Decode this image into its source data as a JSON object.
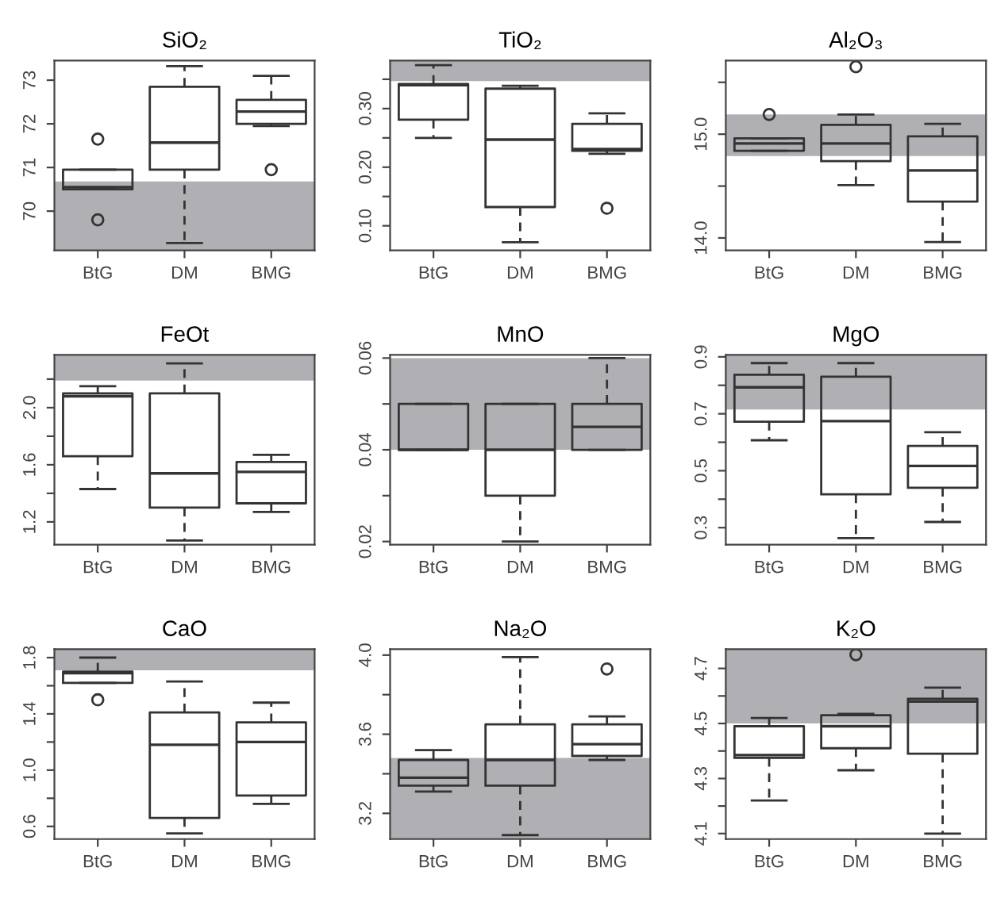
{
  "chart_data": [
    {
      "type": "box",
      "title": "SiO₂",
      "categories": [
        "BtG",
        "DM",
        "BMG"
      ],
      "ylim": [
        69.1,
        73.45
      ],
      "yticks": [
        70,
        71,
        72,
        73
      ],
      "bands": [
        {
          "axis": "y",
          "from": 69.1,
          "to": 70.68,
          "color": "#b0b0b4"
        }
      ],
      "boxes": [
        {
          "low": 70.5,
          "q1": 70.5,
          "median": 70.55,
          "q3": 70.95,
          "high": 70.95,
          "outliers": [
            71.65,
            69.8
          ]
        },
        {
          "low": 69.27,
          "q1": 70.95,
          "median": 71.57,
          "q3": 72.85,
          "high": 73.32
        },
        {
          "low": 71.95,
          "q1": 72.0,
          "median": 72.28,
          "q3": 72.55,
          "high": 73.1,
          "outliers": [
            70.95
          ]
        }
      ]
    },
    {
      "type": "box",
      "title": "TiO₂",
      "categories": [
        "BtG",
        "DM",
        "BMG"
      ],
      "ylim": [
        0.058,
        0.382
      ],
      "yticks": [
        {
          "value": 0.1,
          "label": "0.10"
        },
        {
          "value": 0.15,
          "label": null
        },
        {
          "value": 0.2,
          "label": "0.20"
        },
        {
          "value": 0.25,
          "label": null
        },
        {
          "value": 0.3,
          "label": "0.30"
        },
        {
          "value": 0.35,
          "label": null
        }
      ],
      "bands": [
        {
          "axis": "y",
          "from": 0.347,
          "to": 0.382,
          "color": "#b0b0b4"
        }
      ],
      "boxes": [
        {
          "low": 0.25,
          "q1": 0.281,
          "median": 0.34,
          "q3": 0.342,
          "high": 0.374
        },
        {
          "low": 0.072,
          "q1": 0.132,
          "median": 0.247,
          "q3": 0.334,
          "high": 0.339
        },
        {
          "low": 0.223,
          "q1": 0.228,
          "median": 0.231,
          "q3": 0.274,
          "high": 0.292,
          "outliers": [
            0.13
          ]
        }
      ]
    },
    {
      "type": "box",
      "title": "Al₂O₃",
      "categories": [
        "BtG",
        "DM",
        "BMG"
      ],
      "ylim": [
        13.88,
        15.71
      ],
      "yticks": [
        {
          "value": 14.0,
          "label": "14.0"
        },
        {
          "value": 14.5,
          "label": null
        },
        {
          "value": 15.0,
          "label": "15.0"
        },
        {
          "value": 15.5,
          "label": null
        }
      ],
      "bands": [
        {
          "axis": "y",
          "from": 14.79,
          "to": 15.19,
          "color": "#b0b0b4"
        }
      ],
      "boxes": [
        {
          "low": 14.84,
          "q1": 14.84,
          "median": 14.91,
          "q3": 14.96,
          "high": 14.96,
          "outliers": [
            15.19
          ]
        },
        {
          "low": 14.51,
          "q1": 14.74,
          "median": 14.91,
          "q3": 15.09,
          "high": 15.19,
          "outliers": [
            15.65
          ]
        },
        {
          "low": 13.96,
          "q1": 14.35,
          "median": 14.65,
          "q3": 14.98,
          "high": 15.1
        }
      ]
    },
    {
      "type": "box",
      "title": "FeOt",
      "categories": [
        "BtG",
        "DM",
        "BMG"
      ],
      "ylim": [
        1.04,
        2.37
      ],
      "yticks": [
        1.2,
        {
          "value": 1.4,
          "label": null
        },
        1.6,
        {
          "value": 1.8,
          "label": null
        },
        {
          "value": 2.0,
          "label": "2.0"
        },
        {
          "value": 2.2,
          "label": null
        }
      ],
      "bands": [
        {
          "axis": "y",
          "from": 2.19,
          "to": 2.37,
          "color": "#b0b0b4"
        }
      ],
      "boxes": [
        {
          "low": 1.43,
          "q1": 1.66,
          "median": 2.08,
          "q3": 2.1,
          "high": 2.15
        },
        {
          "low": 1.07,
          "q1": 1.3,
          "median": 1.54,
          "q3": 2.1,
          "high": 2.31
        },
        {
          "low": 1.27,
          "q1": 1.33,
          "median": 1.55,
          "q3": 1.62,
          "high": 1.67
        }
      ]
    },
    {
      "type": "box",
      "title": "MnO",
      "categories": [
        "BtG",
        "DM",
        "BMG"
      ],
      "ylim": [
        0.0193,
        0.0607
      ],
      "yticks": [
        0.02,
        {
          "value": 0.03,
          "label": null
        },
        0.04,
        {
          "value": 0.05,
          "label": null
        },
        0.06
      ],
      "bands": [
        {
          "axis": "y",
          "from": 0.04,
          "to": 0.06,
          "color": "#b0b0b4"
        }
      ],
      "boxes": [
        {
          "low": 0.04,
          "q1": 0.04,
          "median": 0.04,
          "q3": 0.05,
          "high": 0.05
        },
        {
          "low": 0.02,
          "q1": 0.03,
          "median": 0.04,
          "q3": 0.05,
          "high": 0.05
        },
        {
          "low": 0.04,
          "q1": 0.04,
          "median": 0.045,
          "q3": 0.05,
          "high": 0.06
        }
      ]
    },
    {
      "type": "box",
      "title": "MgO",
      "categories": [
        "BtG",
        "DM",
        "BMG"
      ],
      "ylim": [
        0.24,
        0.907
      ],
      "yticks": [
        0.3,
        {
          "value": 0.4,
          "label": null
        },
        0.5,
        {
          "value": 0.6,
          "label": null
        },
        0.7,
        {
          "value": 0.8,
          "label": null
        },
        0.9
      ],
      "bands": [
        {
          "axis": "y",
          "from": 0.715,
          "to": 0.907,
          "color": "#b0b0b4"
        }
      ],
      "boxes": [
        {
          "low": 0.607,
          "q1": 0.672,
          "median": 0.793,
          "q3": 0.837,
          "high": 0.878
        },
        {
          "low": 0.263,
          "q1": 0.417,
          "median": 0.674,
          "q3": 0.83,
          "high": 0.878
        },
        {
          "low": 0.32,
          "q1": 0.44,
          "median": 0.517,
          "q3": 0.587,
          "high": 0.635
        }
      ]
    },
    {
      "type": "box",
      "title": "CaO",
      "categories": [
        "BtG",
        "DM",
        "BMG"
      ],
      "ylim": [
        0.51,
        1.86
      ],
      "yticks": [
        0.6,
        {
          "value": 0.8,
          "label": null
        },
        {
          "value": 1.0,
          "label": "1.0"
        },
        {
          "value": 1.2,
          "label": null
        },
        1.4,
        {
          "value": 1.6,
          "label": null
        },
        1.8
      ],
      "bands": [
        {
          "axis": "y",
          "from": 1.71,
          "to": 1.86,
          "color": "#b0b0b4"
        }
      ],
      "boxes": [
        {
          "low": 1.62,
          "q1": 1.62,
          "median": 1.69,
          "q3": 1.7,
          "high": 1.8,
          "outliers": [
            1.5
          ]
        },
        {
          "low": 0.55,
          "q1": 0.66,
          "median": 1.18,
          "q3": 1.41,
          "high": 1.63
        },
        {
          "low": 0.76,
          "q1": 0.82,
          "median": 1.2,
          "q3": 1.34,
          "high": 1.48
        }
      ]
    },
    {
      "type": "box",
      "title": "Na₂O",
      "categories": [
        "BtG",
        "DM",
        "BMG"
      ],
      "ylim": [
        3.07,
        4.03
      ],
      "yticks": [
        3.2,
        {
          "value": 3.4,
          "label": null
        },
        3.6,
        {
          "value": 3.8,
          "label": null
        },
        {
          "value": 4.0,
          "label": "4.0"
        }
      ],
      "bands": [
        {
          "axis": "y",
          "from": 3.07,
          "to": 3.48,
          "color": "#b0b0b4"
        }
      ],
      "boxes": [
        {
          "low": 3.31,
          "q1": 3.34,
          "median": 3.38,
          "q3": 3.47,
          "high": 3.52
        },
        {
          "low": 3.09,
          "q1": 3.34,
          "median": 3.47,
          "q3": 3.65,
          "high": 3.99
        },
        {
          "low": 3.47,
          "q1": 3.49,
          "median": 3.55,
          "q3": 3.65,
          "high": 3.69,
          "outliers": [
            3.93
          ]
        }
      ]
    },
    {
      "type": "box",
      "title": "K₂O",
      "categories": [
        "BtG",
        "DM",
        "BMG"
      ],
      "ylim": [
        4.08,
        4.77
      ],
      "yticks": [
        4.1,
        {
          "value": 4.2,
          "label": null
        },
        4.3,
        {
          "value": 4.4,
          "label": null
        },
        4.5,
        {
          "value": 4.6,
          "label": null
        },
        4.7
      ],
      "bands": [
        {
          "axis": "y",
          "from": 4.5,
          "to": 4.77,
          "color": "#b0b0b4"
        }
      ],
      "boxes": [
        {
          "low": 4.22,
          "q1": 4.375,
          "median": 4.385,
          "q3": 4.49,
          "high": 4.52
        },
        {
          "low": 4.33,
          "q1": 4.41,
          "median": 4.49,
          "q3": 4.53,
          "high": 4.535,
          "outliers": [
            4.75
          ]
        },
        {
          "low": 4.1,
          "q1": 4.39,
          "median": 4.58,
          "q3": 4.59,
          "high": 4.63
        }
      ]
    }
  ]
}
